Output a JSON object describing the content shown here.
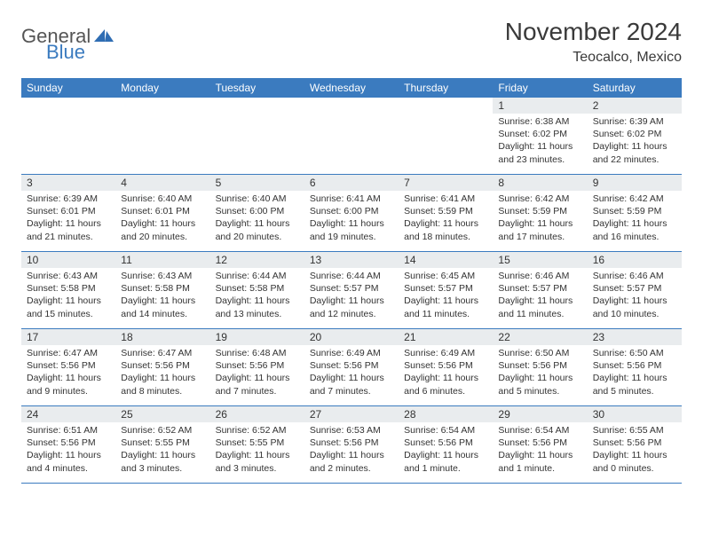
{
  "brand": {
    "general": "General",
    "blue": "Blue"
  },
  "title": "November 2024",
  "location": "Teocalco, Mexico",
  "colors": {
    "header_bg": "#3b7bbf",
    "header_text": "#ffffff",
    "daynum_bg": "#e9ecee",
    "border": "#3b7bbf",
    "text": "#333333"
  },
  "weekdays": [
    "Sunday",
    "Monday",
    "Tuesday",
    "Wednesday",
    "Thursday",
    "Friday",
    "Saturday"
  ],
  "days": {
    "1": {
      "sunrise": "Sunrise: 6:38 AM",
      "sunset": "Sunset: 6:02 PM",
      "daylight": "Daylight: 11 hours and 23 minutes."
    },
    "2": {
      "sunrise": "Sunrise: 6:39 AM",
      "sunset": "Sunset: 6:02 PM",
      "daylight": "Daylight: 11 hours and 22 minutes."
    },
    "3": {
      "sunrise": "Sunrise: 6:39 AM",
      "sunset": "Sunset: 6:01 PM",
      "daylight": "Daylight: 11 hours and 21 minutes."
    },
    "4": {
      "sunrise": "Sunrise: 6:40 AM",
      "sunset": "Sunset: 6:01 PM",
      "daylight": "Daylight: 11 hours and 20 minutes."
    },
    "5": {
      "sunrise": "Sunrise: 6:40 AM",
      "sunset": "Sunset: 6:00 PM",
      "daylight": "Daylight: 11 hours and 20 minutes."
    },
    "6": {
      "sunrise": "Sunrise: 6:41 AM",
      "sunset": "Sunset: 6:00 PM",
      "daylight": "Daylight: 11 hours and 19 minutes."
    },
    "7": {
      "sunrise": "Sunrise: 6:41 AM",
      "sunset": "Sunset: 5:59 PM",
      "daylight": "Daylight: 11 hours and 18 minutes."
    },
    "8": {
      "sunrise": "Sunrise: 6:42 AM",
      "sunset": "Sunset: 5:59 PM",
      "daylight": "Daylight: 11 hours and 17 minutes."
    },
    "9": {
      "sunrise": "Sunrise: 6:42 AM",
      "sunset": "Sunset: 5:59 PM",
      "daylight": "Daylight: 11 hours and 16 minutes."
    },
    "10": {
      "sunrise": "Sunrise: 6:43 AM",
      "sunset": "Sunset: 5:58 PM",
      "daylight": "Daylight: 11 hours and 15 minutes."
    },
    "11": {
      "sunrise": "Sunrise: 6:43 AM",
      "sunset": "Sunset: 5:58 PM",
      "daylight": "Daylight: 11 hours and 14 minutes."
    },
    "12": {
      "sunrise": "Sunrise: 6:44 AM",
      "sunset": "Sunset: 5:58 PM",
      "daylight": "Daylight: 11 hours and 13 minutes."
    },
    "13": {
      "sunrise": "Sunrise: 6:44 AM",
      "sunset": "Sunset: 5:57 PM",
      "daylight": "Daylight: 11 hours and 12 minutes."
    },
    "14": {
      "sunrise": "Sunrise: 6:45 AM",
      "sunset": "Sunset: 5:57 PM",
      "daylight": "Daylight: 11 hours and 11 minutes."
    },
    "15": {
      "sunrise": "Sunrise: 6:46 AM",
      "sunset": "Sunset: 5:57 PM",
      "daylight": "Daylight: 11 hours and 11 minutes."
    },
    "16": {
      "sunrise": "Sunrise: 6:46 AM",
      "sunset": "Sunset: 5:57 PM",
      "daylight": "Daylight: 11 hours and 10 minutes."
    },
    "17": {
      "sunrise": "Sunrise: 6:47 AM",
      "sunset": "Sunset: 5:56 PM",
      "daylight": "Daylight: 11 hours and 9 minutes."
    },
    "18": {
      "sunrise": "Sunrise: 6:47 AM",
      "sunset": "Sunset: 5:56 PM",
      "daylight": "Daylight: 11 hours and 8 minutes."
    },
    "19": {
      "sunrise": "Sunrise: 6:48 AM",
      "sunset": "Sunset: 5:56 PM",
      "daylight": "Daylight: 11 hours and 7 minutes."
    },
    "20": {
      "sunrise": "Sunrise: 6:49 AM",
      "sunset": "Sunset: 5:56 PM",
      "daylight": "Daylight: 11 hours and 7 minutes."
    },
    "21": {
      "sunrise": "Sunrise: 6:49 AM",
      "sunset": "Sunset: 5:56 PM",
      "daylight": "Daylight: 11 hours and 6 minutes."
    },
    "22": {
      "sunrise": "Sunrise: 6:50 AM",
      "sunset": "Sunset: 5:56 PM",
      "daylight": "Daylight: 11 hours and 5 minutes."
    },
    "23": {
      "sunrise": "Sunrise: 6:50 AM",
      "sunset": "Sunset: 5:56 PM",
      "daylight": "Daylight: 11 hours and 5 minutes."
    },
    "24": {
      "sunrise": "Sunrise: 6:51 AM",
      "sunset": "Sunset: 5:56 PM",
      "daylight": "Daylight: 11 hours and 4 minutes."
    },
    "25": {
      "sunrise": "Sunrise: 6:52 AM",
      "sunset": "Sunset: 5:55 PM",
      "daylight": "Daylight: 11 hours and 3 minutes."
    },
    "26": {
      "sunrise": "Sunrise: 6:52 AM",
      "sunset": "Sunset: 5:55 PM",
      "daylight": "Daylight: 11 hours and 3 minutes."
    },
    "27": {
      "sunrise": "Sunrise: 6:53 AM",
      "sunset": "Sunset: 5:56 PM",
      "daylight": "Daylight: 11 hours and 2 minutes."
    },
    "28": {
      "sunrise": "Sunrise: 6:54 AM",
      "sunset": "Sunset: 5:56 PM",
      "daylight": "Daylight: 11 hours and 1 minute."
    },
    "29": {
      "sunrise": "Sunrise: 6:54 AM",
      "sunset": "Sunset: 5:56 PM",
      "daylight": "Daylight: 11 hours and 1 minute."
    },
    "30": {
      "sunrise": "Sunrise: 6:55 AM",
      "sunset": "Sunset: 5:56 PM",
      "daylight": "Daylight: 11 hours and 0 minutes."
    }
  },
  "layout": {
    "first_weekday_index": 5,
    "num_days": 30,
    "cols": 7
  }
}
